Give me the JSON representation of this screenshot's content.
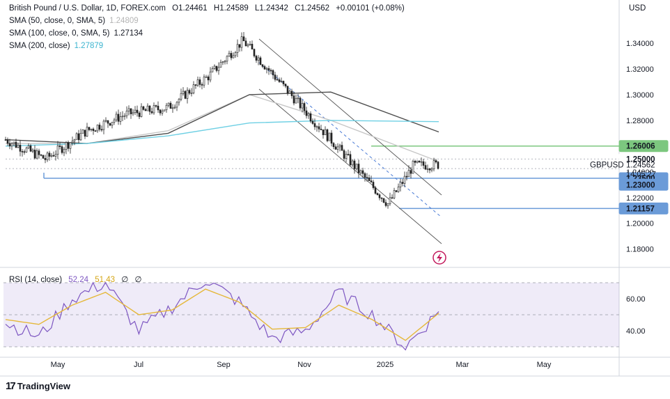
{
  "header": {
    "title": "British Pound / U.S. Dollar, 1D, FOREX.com",
    "ohlc": [
      "O1.24461",
      "H1.24589",
      "L1.24342",
      "C1.24562",
      "+0.00101 (+0.08%)"
    ],
    "indicators": [
      {
        "label": "SMA (50, close, 0, SMA, 5)",
        "value": "1.24809",
        "color": "#c9c9c9"
      },
      {
        "label": "SMA (100, close, 0, SMA, 5)",
        "value": "1.27134",
        "color": "#555555"
      },
      {
        "label": "SMA (200, close)",
        "value": "1.27879",
        "color": "#4ec3da"
      }
    ],
    "currency": "USD"
  },
  "rsi_legend": {
    "label": "RSI (14, close)",
    "value1": "52.24",
    "value2": "51.43",
    "extra1": "∅",
    "extra2": "∅"
  },
  "brand": {
    "name": "TradingView"
  },
  "chart_data": [
    {
      "type": "candlestick",
      "title": "British Pound / U.S. Dollar, 1D, FOREX.com",
      "x_tick_labels": [
        "May",
        "Jul",
        "Sep",
        "Nov",
        "2025",
        "Mar",
        "May"
      ],
      "y_tick_labels": [
        "1.34000",
        "1.32000",
        "1.30000",
        "1.28000",
        "1.26000",
        "1.24000",
        "1.22000",
        "1.20000",
        "1.18000"
      ],
      "ylim": [
        1.16,
        1.36
      ],
      "last_price": {
        "symbol": "GBPUSD",
        "value": "1.24562",
        "countdown": "14:05:27"
      },
      "price_levels": [
        {
          "value": 1.26006,
          "label": "1.26006",
          "color": "#7cc77f"
        },
        {
          "value": 1.25,
          "label": "1.25000",
          "color": "#ffffff"
        },
        {
          "value": 1.235,
          "label": "1.23500",
          "color": "#6b9bd8"
        },
        {
          "value": 1.23,
          "label": "1.23000",
          "color": "#6b9bd8"
        },
        {
          "value": 1.21157,
          "label": "1.21157",
          "color": "#6b9bd8"
        }
      ],
      "series": [
        {
          "name": "Price",
          "x": [
            "2024-04-01",
            "2024-05-01",
            "2024-06-01",
            "2024-07-01",
            "2024-08-01",
            "2024-09-01",
            "2024-09-26",
            "2024-11-01",
            "2024-12-01",
            "2025-01-13",
            "2025-02-01",
            "2025-02-20"
          ],
          "values": [
            1.265,
            1.25,
            1.272,
            1.285,
            1.29,
            1.315,
            1.342,
            1.3,
            1.265,
            1.215,
            1.245,
            1.2456
          ]
        },
        {
          "name": "SMA 50",
          "x": [
            "2024-04-01",
            "2024-06-01",
            "2024-08-01",
            "2024-10-01",
            "2024-12-01",
            "2025-02-20"
          ],
          "values": [
            1.262,
            1.262,
            1.272,
            1.3,
            1.28,
            1.248
          ]
        },
        {
          "name": "SMA 100",
          "x": [
            "2024-04-01",
            "2024-06-01",
            "2024-08-01",
            "2024-10-01",
            "2024-12-01",
            "2025-02-20"
          ],
          "values": [
            1.265,
            1.262,
            1.27,
            1.3,
            1.302,
            1.271
          ]
        },
        {
          "name": "SMA 200",
          "x": [
            "2024-04-01",
            "2024-06-01",
            "2024-08-01",
            "2024-10-01",
            "2024-12-01",
            "2025-02-20"
          ],
          "values": [
            1.26,
            1.262,
            1.268,
            1.278,
            1.28,
            1.279
          ]
        }
      ]
    },
    {
      "type": "line",
      "title": "RSI (14, close)",
      "y_tick_labels": [
        "60.00",
        "40.00"
      ],
      "ylim": [
        25,
        75
      ],
      "bands": [
        30,
        50,
        70
      ],
      "series": [
        {
          "name": "RSI",
          "values": [
            45,
            36,
            60,
            70,
            40,
            55,
            72,
            58,
            35,
            40,
            64,
            50,
            30,
            52
          ]
        },
        {
          "name": "RSI MA",
          "values": [
            47,
            44,
            56,
            64,
            50,
            53,
            66,
            58,
            41,
            42,
            56,
            47,
            34,
            51
          ]
        }
      ]
    }
  ]
}
